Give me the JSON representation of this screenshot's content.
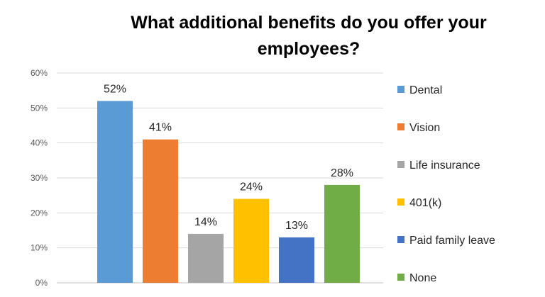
{
  "chart_data": {
    "type": "bar",
    "title": "What additional benefits do you offer your employees?",
    "xlabel": "",
    "ylabel": "",
    "ylim": [
      0,
      60
    ],
    "y_ticks": [
      "0%",
      "10%",
      "20%",
      "30%",
      "40%",
      "50%",
      "60%"
    ],
    "grid": true,
    "legend": "right",
    "categories": [
      "Dental",
      "Vision",
      "Life insurance",
      "401(k)",
      "Paid family leave",
      "None"
    ],
    "values": [
      52,
      41,
      14,
      24,
      13,
      28
    ],
    "data_labels": [
      "52%",
      "41%",
      "14%",
      "24%",
      "13%",
      "28%"
    ],
    "colors": [
      "#5B9BD5",
      "#ED7D31",
      "#A5A5A5",
      "#FFC000",
      "#4472C4",
      "#70AD47"
    ]
  }
}
